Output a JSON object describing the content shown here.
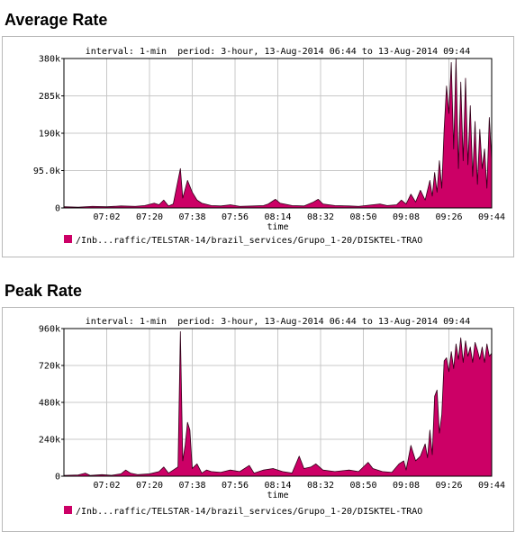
{
  "chart_data": [
    {
      "type": "area",
      "title": "Average Rate",
      "subtitle": "interval: 1-min  period: 3-hour, 13-Aug-2014 06:44 to 13-Aug-2014 09:44",
      "xlabel": "time",
      "ylabel": "",
      "x_ticks": [
        "07:02",
        "07:20",
        "07:38",
        "07:56",
        "08:14",
        "08:32",
        "08:50",
        "09:08",
        "09:26",
        "09:44"
      ],
      "y_ticks": [
        "0",
        "95.0k",
        "190k",
        "285k",
        "380k"
      ],
      "y_tick_values": [
        0,
        95000,
        190000,
        285000,
        380000
      ],
      "ylim": [
        0,
        380000
      ],
      "grid": true,
      "color": "#cc0066",
      "series": [
        {
          "name": "/Inb...raffic/TELSTAR-14/brazil_services/Grupo_1-20/DISKTEL-TRAO",
          "points": [
            [
              "06:44",
              3000
            ],
            [
              "06:50",
              2000
            ],
            [
              "06:56",
              4000
            ],
            [
              "07:02",
              3000
            ],
            [
              "07:08",
              5000
            ],
            [
              "07:14",
              4000
            ],
            [
              "07:18",
              6000
            ],
            [
              "07:22",
              12000
            ],
            [
              "07:24",
              8000
            ],
            [
              "07:26",
              20000
            ],
            [
              "07:28",
              5000
            ],
            [
              "07:30",
              10000
            ],
            [
              "07:33",
              100000
            ],
            [
              "07:34",
              25000
            ],
            [
              "07:36",
              70000
            ],
            [
              "07:38",
              40000
            ],
            [
              "07:40",
              20000
            ],
            [
              "07:42",
              12000
            ],
            [
              "07:46",
              6000
            ],
            [
              "07:50",
              5000
            ],
            [
              "07:54",
              8000
            ],
            [
              "07:58",
              4000
            ],
            [
              "08:04",
              5000
            ],
            [
              "08:08",
              6000
            ],
            [
              "08:10",
              10000
            ],
            [
              "08:13",
              22000
            ],
            [
              "08:15",
              12000
            ],
            [
              "08:20",
              6000
            ],
            [
              "08:25",
              5000
            ],
            [
              "08:29",
              15000
            ],
            [
              "08:31",
              22000
            ],
            [
              "08:33",
              10000
            ],
            [
              "08:38",
              6000
            ],
            [
              "08:44",
              5000
            ],
            [
              "08:48",
              4000
            ],
            [
              "08:54",
              8000
            ],
            [
              "08:57",
              10000
            ],
            [
              "09:00",
              6000
            ],
            [
              "09:04",
              8000
            ],
            [
              "09:06",
              20000
            ],
            [
              "09:08",
              10000
            ],
            [
              "09:10",
              35000
            ],
            [
              "09:12",
              15000
            ],
            [
              "09:14",
              45000
            ],
            [
              "09:16",
              20000
            ],
            [
              "09:18",
              70000
            ],
            [
              "09:19",
              30000
            ],
            [
              "09:20",
              90000
            ],
            [
              "09:21",
              40000
            ],
            [
              "09:22",
              120000
            ],
            [
              "09:23",
              50000
            ],
            [
              "09:24",
              200000
            ],
            [
              "09:25",
              310000
            ],
            [
              "09:26",
              240000
            ],
            [
              "09:27",
              370000
            ],
            [
              "09:28",
              150000
            ],
            [
              "09:29",
              380000
            ],
            [
              "09:30",
              100000
            ],
            [
              "09:31",
              320000
            ],
            [
              "09:32",
              120000
            ],
            [
              "09:33",
              330000
            ],
            [
              "09:34",
              110000
            ],
            [
              "09:35",
              260000
            ],
            [
              "09:36",
              80000
            ],
            [
              "09:37",
              220000
            ],
            [
              "09:38",
              60000
            ],
            [
              "09:39",
              200000
            ],
            [
              "09:40",
              100000
            ],
            [
              "09:41",
              150000
            ],
            [
              "09:42",
              50000
            ],
            [
              "09:43",
              230000
            ],
            [
              "09:44",
              120000
            ]
          ]
        }
      ]
    },
    {
      "type": "area",
      "title": "Peak Rate",
      "subtitle": "interval: 1-min  period: 3-hour, 13-Aug-2014 06:44 to 13-Aug-2014 09:44",
      "xlabel": "time",
      "ylabel": "",
      "x_ticks": [
        "07:02",
        "07:20",
        "07:38",
        "07:56",
        "08:14",
        "08:32",
        "08:50",
        "09:08",
        "09:26",
        "09:44"
      ],
      "y_ticks": [
        "0",
        "240k",
        "480k",
        "720k",
        "960k"
      ],
      "y_tick_values": [
        0,
        240000,
        480000,
        720000,
        960000
      ],
      "ylim": [
        0,
        960000
      ],
      "grid": true,
      "color": "#cc0066",
      "series": [
        {
          "name": "/Inb...raffic/TELSTAR-14/brazil_services/Grupo_1-20/DISKTEL-TRAO",
          "points": [
            [
              "06:44",
              5000
            ],
            [
              "06:50",
              8000
            ],
            [
              "06:53",
              20000
            ],
            [
              "06:55",
              5000
            ],
            [
              "07:00",
              10000
            ],
            [
              "07:04",
              6000
            ],
            [
              "07:08",
              15000
            ],
            [
              "07:10",
              40000
            ],
            [
              "07:12",
              20000
            ],
            [
              "07:15",
              10000
            ],
            [
              "07:20",
              15000
            ],
            [
              "07:24",
              30000
            ],
            [
              "07:26",
              60000
            ],
            [
              "07:28",
              20000
            ],
            [
              "07:30",
              40000
            ],
            [
              "07:32",
              60000
            ],
            [
              "07:33",
              940000
            ],
            [
              "07:34",
              100000
            ],
            [
              "07:35",
              200000
            ],
            [
              "07:36",
              350000
            ],
            [
              "07:37",
              300000
            ],
            [
              "07:38",
              50000
            ],
            [
              "07:40",
              80000
            ],
            [
              "07:42",
              20000
            ],
            [
              "07:44",
              40000
            ],
            [
              "07:46",
              30000
            ],
            [
              "07:50",
              25000
            ],
            [
              "07:54",
              40000
            ],
            [
              "07:58",
              30000
            ],
            [
              "08:02",
              70000
            ],
            [
              "08:04",
              20000
            ],
            [
              "08:08",
              40000
            ],
            [
              "08:12",
              50000
            ],
            [
              "08:16",
              30000
            ],
            [
              "08:20",
              20000
            ],
            [
              "08:23",
              130000
            ],
            [
              "08:25",
              50000
            ],
            [
              "08:28",
              60000
            ],
            [
              "08:30",
              80000
            ],
            [
              "08:33",
              40000
            ],
            [
              "08:38",
              30000
            ],
            [
              "08:44",
              40000
            ],
            [
              "08:48",
              30000
            ],
            [
              "08:52",
              90000
            ],
            [
              "08:54",
              50000
            ],
            [
              "08:58",
              30000
            ],
            [
              "09:02",
              25000
            ],
            [
              "09:05",
              80000
            ],
            [
              "09:07",
              100000
            ],
            [
              "09:08",
              40000
            ],
            [
              "09:10",
              200000
            ],
            [
              "09:12",
              100000
            ],
            [
              "09:14",
              130000
            ],
            [
              "09:16",
              210000
            ],
            [
              "09:17",
              120000
            ],
            [
              "09:18",
              300000
            ],
            [
              "09:19",
              140000
            ],
            [
              "09:20",
              520000
            ],
            [
              "09:21",
              560000
            ],
            [
              "09:22",
              280000
            ],
            [
              "09:23",
              400000
            ],
            [
              "09:24",
              750000
            ],
            [
              "09:25",
              770000
            ],
            [
              "09:26",
              680000
            ],
            [
              "09:27",
              810000
            ],
            [
              "09:28",
              700000
            ],
            [
              "09:29",
              860000
            ],
            [
              "09:30",
              760000
            ],
            [
              "09:31",
              900000
            ],
            [
              "09:32",
              740000
            ],
            [
              "09:33",
              880000
            ],
            [
              "09:34",
              780000
            ],
            [
              "09:35",
              840000
            ],
            [
              "09:36",
              740000
            ],
            [
              "09:37",
              870000
            ],
            [
              "09:38",
              820000
            ],
            [
              "09:39",
              760000
            ],
            [
              "09:40",
              840000
            ],
            [
              "09:41",
              740000
            ],
            [
              "09:42",
              860000
            ],
            [
              "09:43",
              780000
            ],
            [
              "09:44",
              800000
            ]
          ]
        }
      ]
    }
  ]
}
